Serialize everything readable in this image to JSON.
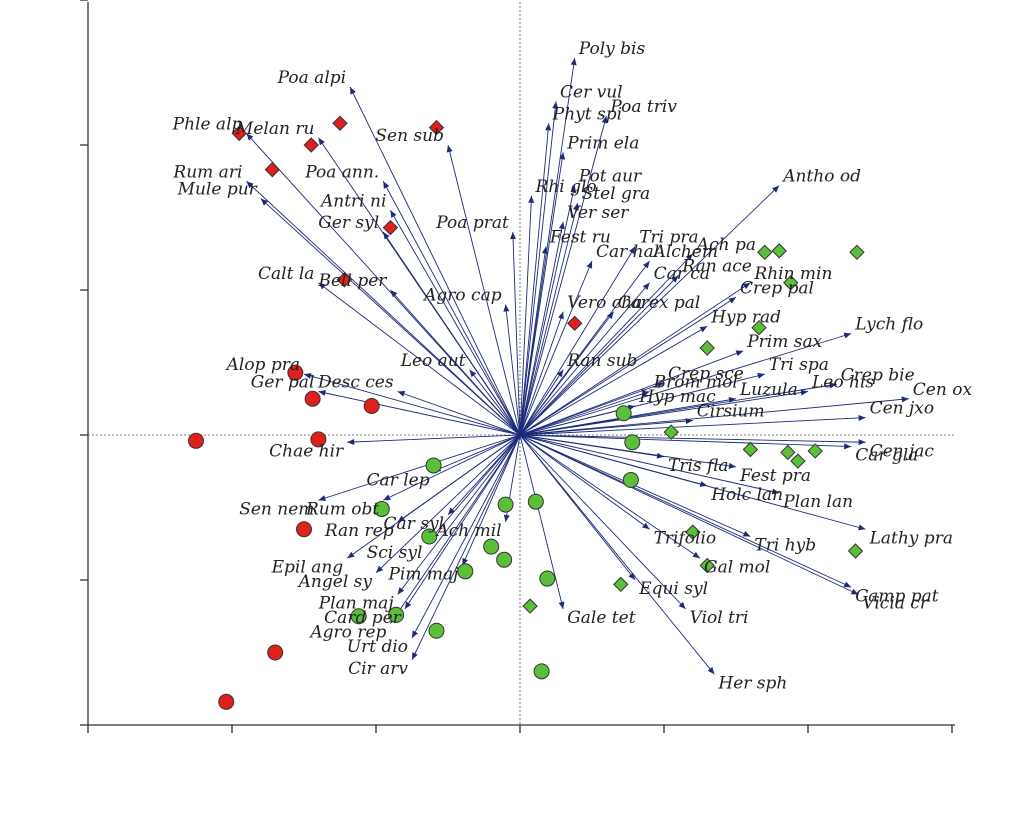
{
  "chart_data": {
    "type": "scatter",
    "title": "",
    "xlabel": "",
    "ylabel": "",
    "xlim": [
      -3.0,
      3.0
    ],
    "ylim": [
      -2.0,
      3.0
    ],
    "grid": false,
    "colors": {
      "vector": "#1c2a7a",
      "red": "#e0201c",
      "green": "#5cbf3a",
      "marker_edge": "#333333"
    },
    "species_vectors": [
      {
        "name": "Poly bis",
        "x": 0.38,
        "y": 2.6
      },
      {
        "name": "Poa alpi",
        "x": -1.18,
        "y": 2.4
      },
      {
        "name": "Phle alp",
        "x": -1.9,
        "y": 2.08
      },
      {
        "name": "Melan ru",
        "x": -1.4,
        "y": 2.05
      },
      {
        "name": "Sen sub",
        "x": -0.5,
        "y": 2.0
      },
      {
        "name": "Cer vul",
        "x": 0.25,
        "y": 2.3
      },
      {
        "name": "Poa triv",
        "x": 0.6,
        "y": 2.2
      },
      {
        "name": "Phyt spi",
        "x": 0.2,
        "y": 2.15
      },
      {
        "name": "Prim ela",
        "x": 0.3,
        "y": 1.95
      },
      {
        "name": "Rum ari",
        "x": -1.9,
        "y": 1.75
      },
      {
        "name": "Mule pur",
        "x": -1.8,
        "y": 1.63
      },
      {
        "name": "Poa ann.",
        "x": -0.95,
        "y": 1.75
      },
      {
        "name": "Antri ni",
        "x": -0.9,
        "y": 1.55
      },
      {
        "name": "Ger syl",
        "x": -0.95,
        "y": 1.4
      },
      {
        "name": "Rhi glo",
        "x": 0.08,
        "y": 1.65
      },
      {
        "name": "Pot aur",
        "x": 0.38,
        "y": 1.72
      },
      {
        "name": "Stel gra",
        "x": 0.4,
        "y": 1.6
      },
      {
        "name": "Ver ser",
        "x": 0.3,
        "y": 1.47
      },
      {
        "name": "Poa prat",
        "x": -0.05,
        "y": 1.4
      },
      {
        "name": "Fest ru",
        "x": 0.18,
        "y": 1.3
      },
      {
        "name": "Car hal",
        "x": 0.5,
        "y": 1.2
      },
      {
        "name": "Antho od",
        "x": 1.8,
        "y": 1.72
      },
      {
        "name": "Tri pra",
        "x": 0.8,
        "y": 1.3
      },
      {
        "name": "Alchem",
        "x": 0.9,
        "y": 1.2
      },
      {
        "name": "Ach pa",
        "x": 1.2,
        "y": 1.25
      },
      {
        "name": "Ran ace",
        "x": 1.1,
        "y": 1.1
      },
      {
        "name": "Car ca",
        "x": 0.9,
        "y": 1.05
      },
      {
        "name": "Calt la",
        "x": -1.4,
        "y": 1.05
      },
      {
        "name": "Bell per",
        "x": -0.9,
        "y": 1.0
      },
      {
        "name": "Agro cap",
        "x": -0.1,
        "y": 0.9
      },
      {
        "name": "Vero cha",
        "x": 0.3,
        "y": 0.85
      },
      {
        "name": "Carex pal",
        "x": 0.65,
        "y": 0.85
      },
      {
        "name": "Rhin min",
        "x": 1.6,
        "y": 1.05
      },
      {
        "name": "Crep pal",
        "x": 1.5,
        "y": 0.95
      },
      {
        "name": "Hyp rad",
        "x": 1.3,
        "y": 0.75
      },
      {
        "name": "Leo aut",
        "x": -0.35,
        "y": 0.45
      },
      {
        "name": "Ran sub",
        "x": 0.3,
        "y": 0.45
      },
      {
        "name": "Lych flo",
        "x": 2.3,
        "y": 0.7
      },
      {
        "name": "Prim sax",
        "x": 1.55,
        "y": 0.58
      },
      {
        "name": "Tri spa",
        "x": 1.7,
        "y": 0.42
      },
      {
        "name": "Crep bie",
        "x": 2.2,
        "y": 0.35
      },
      {
        "name": "Leo his",
        "x": 2.0,
        "y": 0.3
      },
      {
        "name": "Cen ox",
        "x": 2.7,
        "y": 0.25
      },
      {
        "name": "Cen jxo",
        "x": 2.4,
        "y": 0.12
      },
      {
        "name": "Luzula",
        "x": 1.5,
        "y": 0.25
      },
      {
        "name": "Crep sce",
        "x": 1.0,
        "y": 0.36
      },
      {
        "name": "Brom mol",
        "x": 0.9,
        "y": 0.3
      },
      {
        "name": "Hyp mac",
        "x": 0.8,
        "y": 0.2
      },
      {
        "name": "Cen jac",
        "x": 2.4,
        "y": -0.05
      },
      {
        "name": "Cirsium",
        "x": 1.2,
        "y": 0.1
      },
      {
        "name": "Car gla",
        "x": 2.3,
        "y": -0.08
      },
      {
        "name": "Tris fla",
        "x": 1.0,
        "y": -0.15
      },
      {
        "name": "Fest pra",
        "x": 1.5,
        "y": -0.22
      },
      {
        "name": "Plan lan",
        "x": 1.8,
        "y": -0.4
      },
      {
        "name": "Holc lan",
        "x": 1.3,
        "y": -0.35
      },
      {
        "name": "Lathy pra",
        "x": 2.4,
        "y": -0.65
      },
      {
        "name": "Vicia cr",
        "x": 2.35,
        "y": -1.1
      },
      {
        "name": "Camp pat",
        "x": 2.3,
        "y": -1.05
      },
      {
        "name": "Tri hyb",
        "x": 1.6,
        "y": -0.7
      },
      {
        "name": "Gal mol",
        "x": 1.25,
        "y": -0.85
      },
      {
        "name": "Trifolio",
        "x": 0.9,
        "y": -0.65
      },
      {
        "name": "Equi syl",
        "x": 0.8,
        "y": -1.0
      },
      {
        "name": "Viol tri",
        "x": 1.15,
        "y": -1.2
      },
      {
        "name": "Her sph",
        "x": 1.35,
        "y": -1.65
      },
      {
        "name": "Gale tet",
        "x": 0.3,
        "y": -1.2
      },
      {
        "name": "Pim maj",
        "x": -0.4,
        "y": -0.9
      },
      {
        "name": "Ach mil",
        "x": -0.1,
        "y": -0.6
      },
      {
        "name": "Car syl",
        "x": -0.5,
        "y": -0.55
      },
      {
        "name": "Sci syl",
        "x": -0.65,
        "y": -0.75
      },
      {
        "name": "Car lep",
        "x": -0.6,
        "y": -0.25
      },
      {
        "name": "Rum obt",
        "x": -0.95,
        "y": -0.45
      },
      {
        "name": "Ran rep",
        "x": -0.85,
        "y": -0.6
      },
      {
        "name": "Sen nem",
        "x": -1.4,
        "y": -0.45
      },
      {
        "name": "Epil ang",
        "x": -1.2,
        "y": -0.85
      },
      {
        "name": "Angel sy",
        "x": -1.0,
        "y": -0.95
      },
      {
        "name": "Plan maj",
        "x": -0.85,
        "y": -1.1
      },
      {
        "name": "Card per",
        "x": -0.8,
        "y": -1.2
      },
      {
        "name": "Agro rep",
        "x": -0.9,
        "y": -1.3
      },
      {
        "name": "Urt dio",
        "x": -0.75,
        "y": -1.4
      },
      {
        "name": "Cir arv",
        "x": -0.75,
        "y": -1.55
      },
      {
        "name": "Alop pra",
        "x": -1.5,
        "y": 0.42
      },
      {
        "name": "Ger pal",
        "x": -1.4,
        "y": 0.3
      },
      {
        "name": "Desc ces",
        "x": -0.85,
        "y": 0.3
      },
      {
        "name": "Chae hir",
        "x": -1.2,
        "y": -0.05
      }
    ],
    "site_points": [
      {
        "shape": "diamond",
        "color": "red",
        "x": -1.95,
        "y": 2.08
      },
      {
        "shape": "diamond",
        "color": "red",
        "x": -1.25,
        "y": 2.15
      },
      {
        "shape": "diamond",
        "color": "red",
        "x": -1.45,
        "y": 2.0
      },
      {
        "shape": "diamond",
        "color": "red",
        "x": -0.58,
        "y": 2.12
      },
      {
        "shape": "diamond",
        "color": "red",
        "x": -1.72,
        "y": 1.83
      },
      {
        "shape": "diamond",
        "color": "red",
        "x": -0.9,
        "y": 1.43
      },
      {
        "shape": "diamond",
        "color": "red",
        "x": -1.22,
        "y": 1.07
      },
      {
        "shape": "diamond",
        "color": "red",
        "x": 0.38,
        "y": 0.77
      },
      {
        "shape": "circle",
        "color": "red",
        "x": -1.56,
        "y": 0.43
      },
      {
        "shape": "circle",
        "color": "red",
        "x": -1.44,
        "y": 0.25
      },
      {
        "shape": "circle",
        "color": "red",
        "x": -1.03,
        "y": 0.2
      },
      {
        "shape": "circle",
        "color": "red",
        "x": -2.25,
        "y": -0.04
      },
      {
        "shape": "circle",
        "color": "red",
        "x": -1.4,
        "y": -0.03
      },
      {
        "shape": "circle",
        "color": "red",
        "x": -1.5,
        "y": -0.65
      },
      {
        "shape": "circle",
        "color": "red",
        "x": -1.7,
        "y": -1.5
      },
      {
        "shape": "circle",
        "color": "red",
        "x": -2.04,
        "y": -1.84
      },
      {
        "shape": "diamond",
        "color": "green",
        "x": 1.7,
        "y": 1.26
      },
      {
        "shape": "diamond",
        "color": "green",
        "x": 1.8,
        "y": 1.27
      },
      {
        "shape": "diamond",
        "color": "green",
        "x": 2.34,
        "y": 1.26
      },
      {
        "shape": "diamond",
        "color": "green",
        "x": 1.88,
        "y": 1.05
      },
      {
        "shape": "diamond",
        "color": "green",
        "x": 1.66,
        "y": 0.74
      },
      {
        "shape": "diamond",
        "color": "green",
        "x": 1.3,
        "y": 0.6
      },
      {
        "shape": "diamond",
        "color": "green",
        "x": 1.05,
        "y": 0.02
      },
      {
        "shape": "diamond",
        "color": "green",
        "x": 1.6,
        "y": -0.1
      },
      {
        "shape": "diamond",
        "color": "green",
        "x": 1.86,
        "y": -0.12
      },
      {
        "shape": "diamond",
        "color": "green",
        "x": 1.93,
        "y": -0.18
      },
      {
        "shape": "diamond",
        "color": "green",
        "x": 2.05,
        "y": -0.11
      },
      {
        "shape": "diamond",
        "color": "green",
        "x": 2.33,
        "y": -0.8
      },
      {
        "shape": "diamond",
        "color": "green",
        "x": 1.2,
        "y": -0.67
      },
      {
        "shape": "diamond",
        "color": "green",
        "x": 1.3,
        "y": -0.9
      },
      {
        "shape": "diamond",
        "color": "green",
        "x": 0.7,
        "y": -1.03
      },
      {
        "shape": "diamond",
        "color": "green",
        "x": 0.07,
        "y": -1.18
      },
      {
        "shape": "circle",
        "color": "green",
        "x": 0.72,
        "y": 0.15
      },
      {
        "shape": "circle",
        "color": "green",
        "x": 0.78,
        "y": -0.05
      },
      {
        "shape": "circle",
        "color": "green",
        "x": -0.6,
        "y": -0.21
      },
      {
        "shape": "circle",
        "color": "green",
        "x": 0.77,
        "y": -0.31
      },
      {
        "shape": "circle",
        "color": "green",
        "x": -0.96,
        "y": -0.51
      },
      {
        "shape": "circle",
        "color": "green",
        "x": -0.1,
        "y": -0.48
      },
      {
        "shape": "circle",
        "color": "green",
        "x": 0.11,
        "y": -0.46
      },
      {
        "shape": "circle",
        "color": "green",
        "x": -0.63,
        "y": -0.7
      },
      {
        "shape": "circle",
        "color": "green",
        "x": -0.2,
        "y": -0.77
      },
      {
        "shape": "circle",
        "color": "green",
        "x": -0.11,
        "y": -0.86
      },
      {
        "shape": "circle",
        "color": "green",
        "x": -0.38,
        "y": -0.94
      },
      {
        "shape": "circle",
        "color": "green",
        "x": 0.19,
        "y": -0.99
      },
      {
        "shape": "circle",
        "color": "green",
        "x": -1.12,
        "y": -1.25
      },
      {
        "shape": "circle",
        "color": "green",
        "x": -0.86,
        "y": -1.24
      },
      {
        "shape": "circle",
        "color": "green",
        "x": -0.58,
        "y": -1.35
      },
      {
        "shape": "circle",
        "color": "green",
        "x": 0.15,
        "y": -1.63
      }
    ]
  }
}
